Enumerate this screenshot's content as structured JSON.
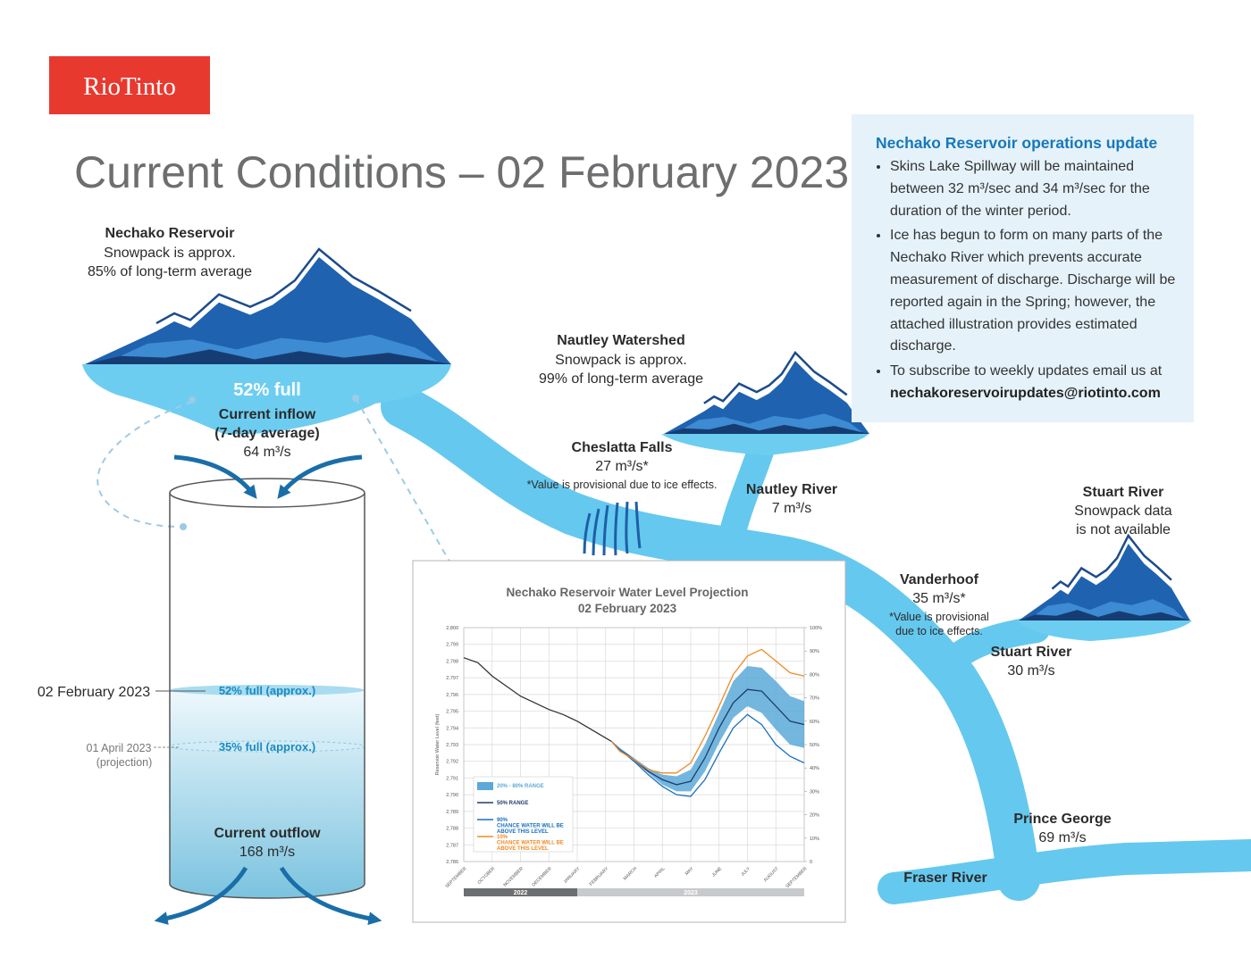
{
  "logo": "RioTinto",
  "title": "Current Conditions – 02 February 2023",
  "update": {
    "title": "Nechako Reservoir operations update",
    "bullets": [
      "Skins Lake Spillway will be maintained between 32 m³/sec and 34 m³/sec for the duration of the winter period.",
      "Ice has begun to form on many parts of the Nechako River which prevents accurate measurement of discharge. Discharge will be reported again in the Spring; however, the attached illustration provides estimated discharge.",
      "To subscribe to weekly updates email us at"
    ],
    "email": "nechakoreservoirupdates@riotinto.com"
  },
  "reservoir": {
    "name": "Nechako Reservoir",
    "snowpack": [
      "Snowpack is approx.",
      "85% of long-term average"
    ],
    "level": "52% full",
    "inflow": [
      "Current inflow",
      "(7-day average)"
    ],
    "inflow_value": "64 m³/s"
  },
  "nautley_watershed": {
    "name": "Nautley Watershed",
    "snowpack": [
      "Snowpack is approx.",
      "99% of long-term average"
    ]
  },
  "cheslatta_falls": {
    "name": "Cheslatta Falls",
    "flow": "27 m³/s*",
    "note": "*Value is provisional due to ice effects."
  },
  "nautley_river": {
    "name": "Nautley River",
    "flow": "7 m³/s"
  },
  "stuart_watershed": {
    "name": "Stuart River",
    "snowpack": [
      "Snowpack data",
      "is not available"
    ]
  },
  "vanderhoof": {
    "name": "Vanderhoof",
    "flow": "35 m³/s*",
    "note": [
      "*Value is provisional",
      "due to ice effects."
    ]
  },
  "stuart_river": {
    "name": "Stuart River",
    "flow": "30 m³/s"
  },
  "prince_george": {
    "name": "Prince George",
    "flow": "69 m³/s"
  },
  "fraser_river": "Fraser River",
  "tank": {
    "current_date": "02 February 2023",
    "current_level": "52% full (approx.)",
    "projection_date": "01 April 2023",
    "projection_note": "(projection)",
    "projection_level": "35% full (approx.)",
    "outflow": "Current outflow",
    "outflow_value": "168 m³/s"
  },
  "chart_data": {
    "type": "line",
    "title": "Nechako Reservoir Water Level Projection",
    "subtitle": "02 February 2023",
    "y_label": "Reservoir Water Level (feet)",
    "xlim": [
      0,
      12
    ],
    "xticks": [
      {
        "value": 0,
        "label": "SEPTEMBER"
      },
      {
        "value": 1,
        "label": "OCTOBER"
      },
      {
        "value": 2,
        "label": "NOVEMBER"
      },
      {
        "value": 3,
        "label": "DECEMBER"
      },
      {
        "value": 4,
        "label": "JANUARY"
      },
      {
        "value": 5,
        "label": "FEBRUARY"
      },
      {
        "value": 6,
        "label": "MARCH"
      },
      {
        "value": 7,
        "label": "APRIL"
      },
      {
        "value": 8,
        "label": "MAY"
      },
      {
        "value": 9,
        "label": "JUNE"
      },
      {
        "value": 10,
        "label": "JULY"
      },
      {
        "value": 11,
        "label": "AUGUST"
      },
      {
        "value": 12,
        "label": "SEPTEMBER"
      }
    ],
    "ylim": [
      2786,
      2800
    ],
    "yticks": [
      {
        "value": 2786,
        "label": "2,786"
      },
      {
        "value": 2787,
        "label": "2,787"
      },
      {
        "value": 2788,
        "label": "2,788"
      },
      {
        "value": 2789,
        "label": "2,789"
      },
      {
        "value": 2790,
        "label": "2,790"
      },
      {
        "value": 2791,
        "label": "2,791"
      },
      {
        "value": 2792,
        "label": "2,792"
      },
      {
        "value": 2793,
        "label": "2,793"
      },
      {
        "value": 2794,
        "label": "2,794"
      },
      {
        "value": 2795,
        "label": "2,795"
      },
      {
        "value": 2796,
        "label": "2,796"
      },
      {
        "value": 2797,
        "label": "2,797"
      },
      {
        "value": 2798,
        "label": "2,798"
      },
      {
        "value": 2799,
        "label": "2,799"
      },
      {
        "value": 2800,
        "label": "2,800"
      }
    ],
    "y2lim": [
      0,
      100
    ],
    "y2ticks": [
      0,
      {
        "value": 10,
        "label": "10%"
      },
      {
        "value": 20,
        "label": "20%"
      },
      {
        "value": 30,
        "label": "30%"
      },
      {
        "value": 40,
        "label": "40%"
      },
      {
        "value": 50,
        "label": "50%"
      },
      {
        "value": 60,
        "label": "60%"
      },
      {
        "value": 70,
        "label": "70%"
      },
      {
        "value": 80,
        "label": "80%"
      },
      {
        "value": 90,
        "label": "90%"
      },
      {
        "value": 100,
        "label": "100%"
      }
    ],
    "grid": true,
    "legend": "bottom-left",
    "year_bands": [
      {
        "label": "2022",
        "from": 0,
        "to": 4,
        "color": "#6d6e70"
      },
      {
        "label": "2023",
        "from": 4,
        "to": 12,
        "color": "#c8c9cb"
      }
    ],
    "series": [
      {
        "color": "#333333",
        "x": [
          0,
          0.5,
          1,
          1.5,
          2,
          2.5,
          3,
          3.5,
          4,
          4.5,
          5,
          5.2
        ],
        "values": [
          2798.2,
          2797.9,
          2797.1,
          2796.5,
          2795.9,
          2795.5,
          2795.1,
          2794.8,
          2794.4,
          2793.9,
          2793.4,
          2793.2
        ]
      },
      {
        "name": "20% - 80% RANGE",
        "color": "#5ba9d8",
        "x": [
          5.2,
          5.5,
          6,
          6.5,
          7,
          7.5,
          8,
          8.5,
          9,
          9.5,
          10,
          10.5,
          11,
          11.5,
          12
        ],
        "low": [
          2793.2,
          2792.7,
          2792.0,
          2791.3,
          2790.6,
          2790.2,
          2790.2,
          2791.4,
          2793.1,
          2794.6,
          2795.3,
          2794.9,
          2793.9,
          2793.0,
          2792.8
        ],
        "high": [
          2793.2,
          2792.8,
          2792.2,
          2791.6,
          2791.2,
          2791.1,
          2791.5,
          2793.0,
          2794.9,
          2796.8,
          2797.7,
          2797.6,
          2796.8,
          2795.9,
          2795.6
        ]
      },
      {
        "name": "50% RANGE",
        "color": "#1d3d6b",
        "x": [
          5.2,
          5.5,
          6,
          6.5,
          7,
          7.5,
          8,
          8.5,
          9,
          9.5,
          10,
          10.5,
          11,
          11.5,
          12
        ],
        "values": [
          2793.2,
          2792.7,
          2792.1,
          2791.4,
          2790.9,
          2790.6,
          2790.8,
          2792.2,
          2794.0,
          2795.5,
          2796.3,
          2796.2,
          2795.3,
          2794.4,
          2794.2
        ]
      },
      {
        "name": "90% CHANCE WATER WILL BE ABOVE THIS LEVEL",
        "color": "#1a6fc0",
        "x": [
          5.2,
          5.5,
          6,
          6.5,
          7,
          7.5,
          8,
          8.5,
          9,
          9.5,
          10,
          10.5,
          11,
          11.5,
          12
        ],
        "values": [
          2793.2,
          2792.7,
          2792.0,
          2791.2,
          2790.5,
          2790.0,
          2789.9,
          2790.9,
          2792.5,
          2794.0,
          2794.8,
          2794.2,
          2793.0,
          2792.3,
          2791.9
        ]
      },
      {
        "name": "10% CHANCE WATER WILL BE ABOVE THIS LEVEL",
        "color": "#f08a24",
        "x": [
          5.2,
          5.5,
          6,
          6.5,
          7,
          7.5,
          8,
          8.5,
          9,
          9.5,
          10,
          10.5,
          11,
          11.5,
          12
        ],
        "values": [
          2793.2,
          2792.6,
          2792.1,
          2791.5,
          2791.3,
          2791.3,
          2791.9,
          2793.5,
          2795.3,
          2797.2,
          2798.3,
          2798.7,
          2798.0,
          2797.3,
          2797.1
        ]
      }
    ]
  }
}
